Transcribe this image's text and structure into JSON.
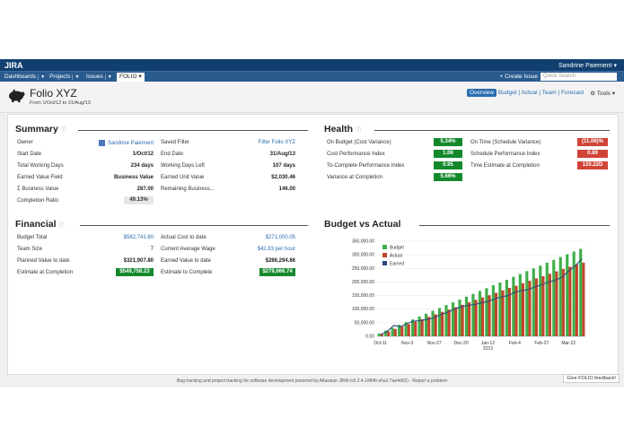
{
  "app": {
    "name": "JIRA",
    "user": "Sandrine Paiement"
  },
  "nav": {
    "items": [
      "Dashboards",
      "Projects",
      "Issues"
    ],
    "active": "FOLIO",
    "create": "Create Issue",
    "search_placeholder": "Quick Search"
  },
  "header": {
    "title": "Folio XYZ",
    "subtitle": "From 1/Oct/12 to 31/Aug/13",
    "tabs": [
      "Overview",
      "Budget",
      "Actual",
      "Team",
      "Forecast"
    ],
    "tools": "Tools"
  },
  "summary": {
    "title": "Summary",
    "left": [
      {
        "label": "Owner",
        "value": "Sandrine Paiement"
      },
      {
        "label": "Start Date",
        "value": "1/Oct/12"
      },
      {
        "label": "Total Working Days",
        "value": "234 days"
      },
      {
        "label": "Earned Value Field",
        "value": "Business Value"
      },
      {
        "label": "Σ Business Value",
        "value": "287.00"
      },
      {
        "label": "Completion Ratio",
        "value": "49.13%"
      }
    ],
    "right": [
      {
        "label": "Saved Filter",
        "value": "Filter Folio XYZ"
      },
      {
        "label": "End Date",
        "value": "31/Aug/13"
      },
      {
        "label": "Working Days Left",
        "value": "107 days"
      },
      {
        "label": "Earned Unit Value",
        "value": "$2,030.46"
      },
      {
        "label": "Remaining Business...",
        "value": "146.00"
      }
    ]
  },
  "health": {
    "title": "Health",
    "left": [
      {
        "label": "On Budget (Cost Variance)",
        "value": "5.34%"
      },
      {
        "label": "Cost Performance Index",
        "value": "1.06"
      },
      {
        "label": "To-Complete Performance Index",
        "value": "0.95"
      },
      {
        "label": "Variance at Completion",
        "value": "5.66%"
      }
    ],
    "right": [
      {
        "label": "On Time (Schedule Variance)",
        "value": "(11.06)%"
      },
      {
        "label": "Schedule Performance Index",
        "value": "0.89"
      },
      {
        "label": "Time Estimate at Completion",
        "value": "120.22D"
      }
    ],
    "colors": {
      "good": "#14892c",
      "bad": "#d04437"
    }
  },
  "financial": {
    "title": "Financial",
    "left": [
      {
        "label": "Budget Total",
        "value": "$582,741.60"
      },
      {
        "label": "Team Size",
        "value": "7"
      },
      {
        "label": "Planned Value to date",
        "value": "$321,907.80"
      },
      {
        "label": "Estimate at Completion",
        "value": "$549,756.23"
      }
    ],
    "right": [
      {
        "label": "Actual Cost to date",
        "value": "$271,000.05"
      },
      {
        "label": "Current Average Wage",
        "value": "$42.83 per hour"
      },
      {
        "label": "Earned Value to date",
        "value": "$286,294.86"
      },
      {
        "label": "Estimate to Complete",
        "value": "$279,666.74"
      }
    ]
  },
  "chart_section": {
    "title": "Budget vs Actual"
  },
  "chart_data": {
    "type": "bar",
    "categories": [
      "Oct-11",
      "",
      "",
      "",
      "Nov-3",
      "",
      "",
      "",
      "Nov-27",
      "",
      "",
      "",
      "Dec-20",
      "",
      "",
      "",
      "Jan-12",
      "",
      "",
      "",
      "Feb-4",
      "",
      "",
      "",
      "Feb-27",
      "",
      "",
      "",
      "Mar-22",
      "",
      ""
    ],
    "x_tick_labels": [
      "Oct-11",
      "Nov-3",
      "Nov-27",
      "Dec-20",
      "Jan-12\n2013",
      "Feb-4",
      "Feb-27",
      "Mar-22"
    ],
    "series": [
      {
        "name": "Budget",
        "type": "bar",
        "color": "#3fae49",
        "values": [
          10000,
          21000,
          31000,
          42000,
          52000,
          62000,
          73000,
          83000,
          94000,
          104000,
          115000,
          125000,
          135000,
          146000,
          156000,
          167000,
          177000,
          188000,
          198000,
          208000,
          219000,
          229000,
          240000,
          250000,
          260000,
          271000,
          281000,
          292000,
          302000,
          312000,
          322000
        ]
      },
      {
        "name": "Actual",
        "type": "bar",
        "color": "#c1452b",
        "values": [
          8000,
          18000,
          27000,
          36000,
          45000,
          54000,
          63000,
          72000,
          81000,
          90000,
          98000,
          107000,
          116000,
          125000,
          134000,
          143000,
          151000,
          160000,
          169000,
          178000,
          186000,
          195000,
          204000,
          213000,
          221000,
          230000,
          239000,
          248000,
          256000,
          265000,
          271000
        ]
      },
      {
        "name": "Earned",
        "type": "line",
        "color": "#2e4a7a",
        "values": [
          6000,
          18000,
          40000,
          35000,
          48000,
          56000,
          58000,
          62000,
          68000,
          80000,
          88000,
          100000,
          108000,
          114000,
          117000,
          123000,
          128000,
          138000,
          145000,
          150000,
          162000,
          168000,
          172000,
          182000,
          190000,
          200000,
          205000,
          218000,
          240000,
          260000,
          286000
        ]
      }
    ],
    "ylim": [
      0,
      350000
    ],
    "yticks": [
      "0.00",
      "50,000.00",
      "100,000.00",
      "150,000.00",
      "200,000.00",
      "250,000.00",
      "300,000.00",
      "350,000.00"
    ],
    "legend": "top-left"
  },
  "footer": {
    "text": "Bug tracking and project tracking for software development powered by Atlassian JIRA (v5.2.4.1#846-sha1:7ae4d02)  ·  Report a problem",
    "feedback": "Give FOLIO feedback!"
  }
}
